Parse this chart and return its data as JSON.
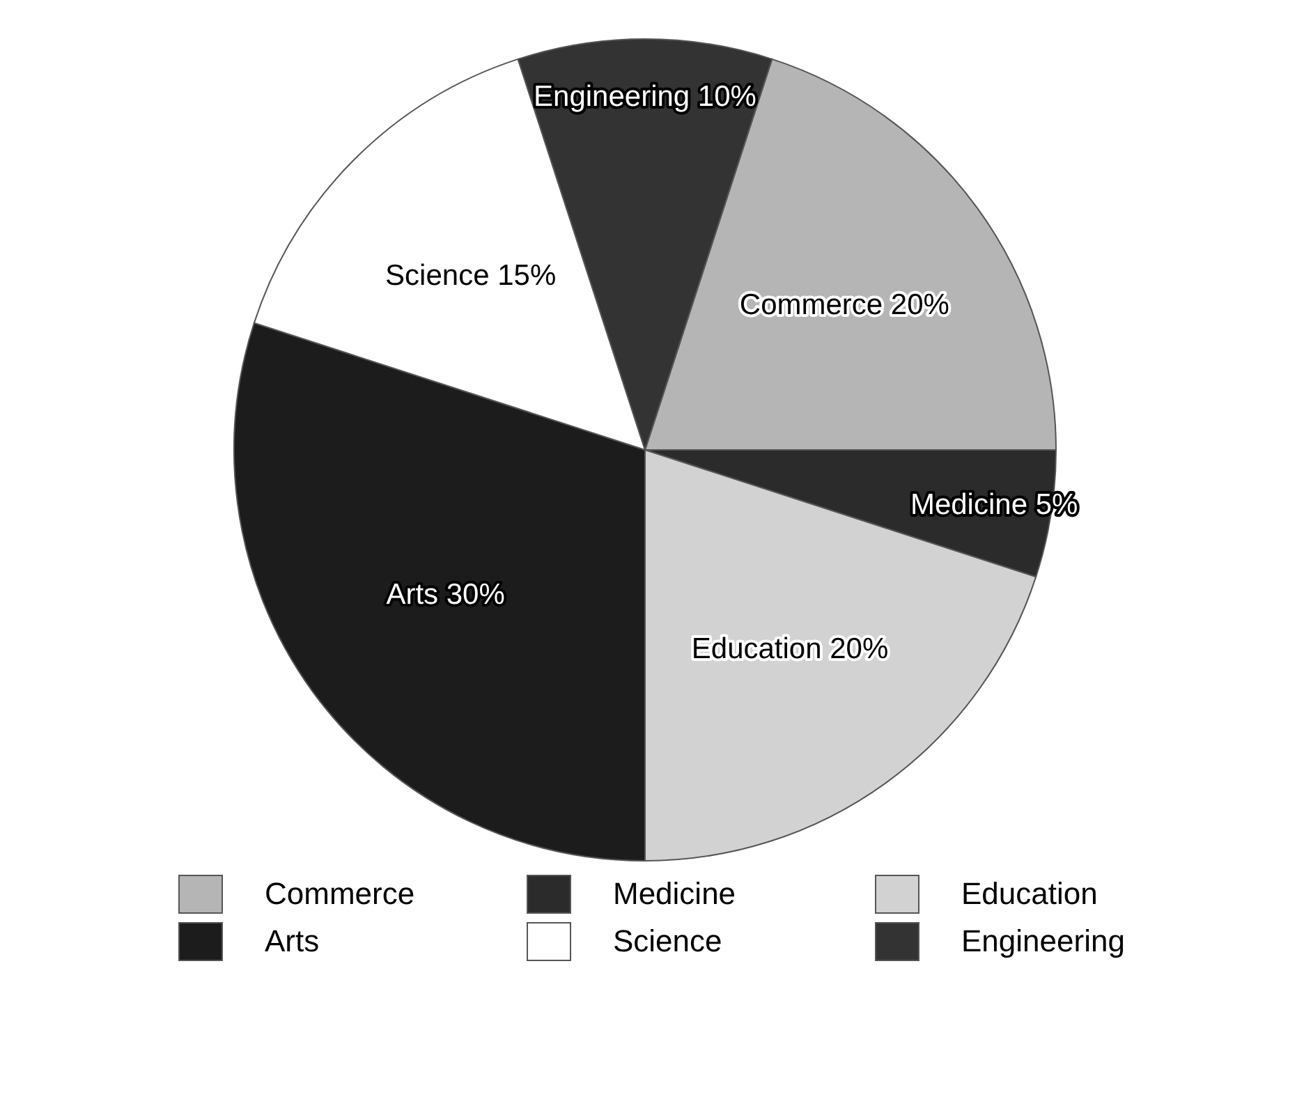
{
  "chart_data": {
    "type": "pie",
    "categories": [
      "Commerce",
      "Medicine",
      "Education",
      "Arts",
      "Science",
      "Engineering"
    ],
    "values": [
      20,
      5,
      20,
      30,
      15,
      10
    ],
    "colors": [
      "#b5b5b5",
      "#2b2b2b",
      "#d2d2d2",
      "#1c1c1c",
      "#ffffff",
      "#333333"
    ],
    "value_labels": [
      "Commerce 20%",
      "Medicine 5%",
      "Education 20%",
      "Arts 30%",
      "Science 15%",
      "Engineering 10%"
    ],
    "legend": "bottom"
  }
}
